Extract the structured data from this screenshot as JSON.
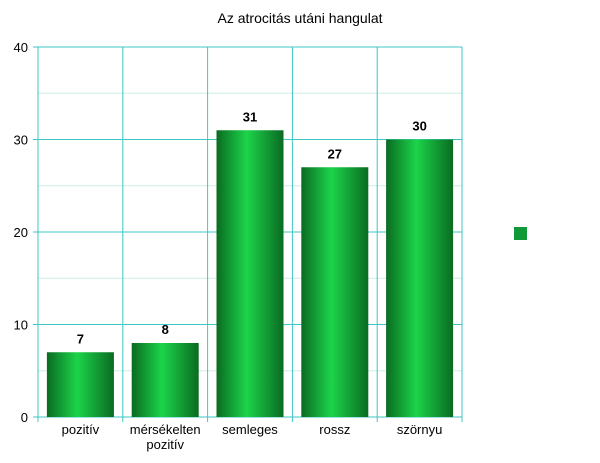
{
  "chart_data": {
    "type": "bar",
    "title": "Az atrocitás utáni hangulat",
    "categories": [
      [
        "pozitív"
      ],
      [
        "mérsékelten",
        "pozitív"
      ],
      [
        "semleges"
      ],
      [
        "rossz"
      ],
      [
        "szörnyu"
      ]
    ],
    "values": [
      7,
      8,
      31,
      27,
      30
    ],
    "yticks": [
      0,
      10,
      20,
      30,
      40
    ],
    "ylim": [
      0,
      40
    ],
    "xlabel": "",
    "ylabel": "",
    "grid": true,
    "legend": {
      "position": "right",
      "label": ""
    },
    "colors": {
      "bar_dark": "#0a6b22",
      "bar_light": "#1cd44a",
      "grid": "#3cc6c6",
      "minor_grid": "#cdeee0",
      "legend_swatch": "#0f9a37"
    },
    "data_labels": true
  }
}
